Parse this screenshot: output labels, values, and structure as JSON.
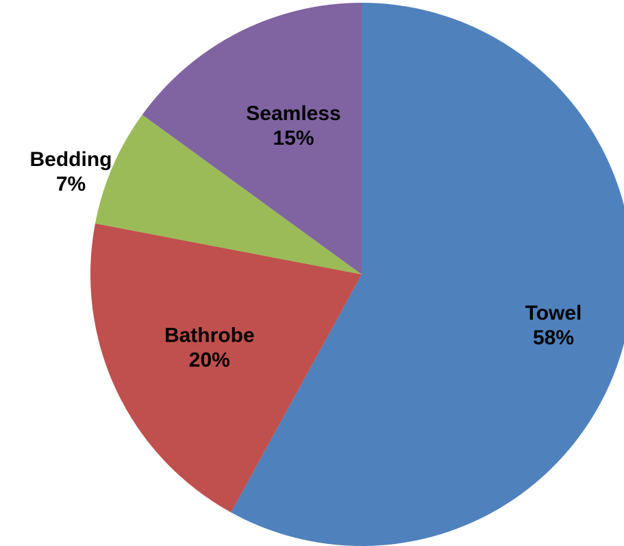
{
  "chart_data": {
    "type": "pie",
    "title": "",
    "legend": "none",
    "slices": [
      {
        "name": "Towel",
        "value": 58,
        "label": "58%",
        "color": "#4F81BD"
      },
      {
        "name": "Bathrobe",
        "value": 20,
        "label": "20%",
        "color": "#C0504D"
      },
      {
        "name": "Bedding",
        "value": 7,
        "label": "7%",
        "color": "#9BBB59"
      },
      {
        "name": "Seamless",
        "value": 15,
        "label": "15%",
        "color": "#8064A2"
      }
    ]
  }
}
